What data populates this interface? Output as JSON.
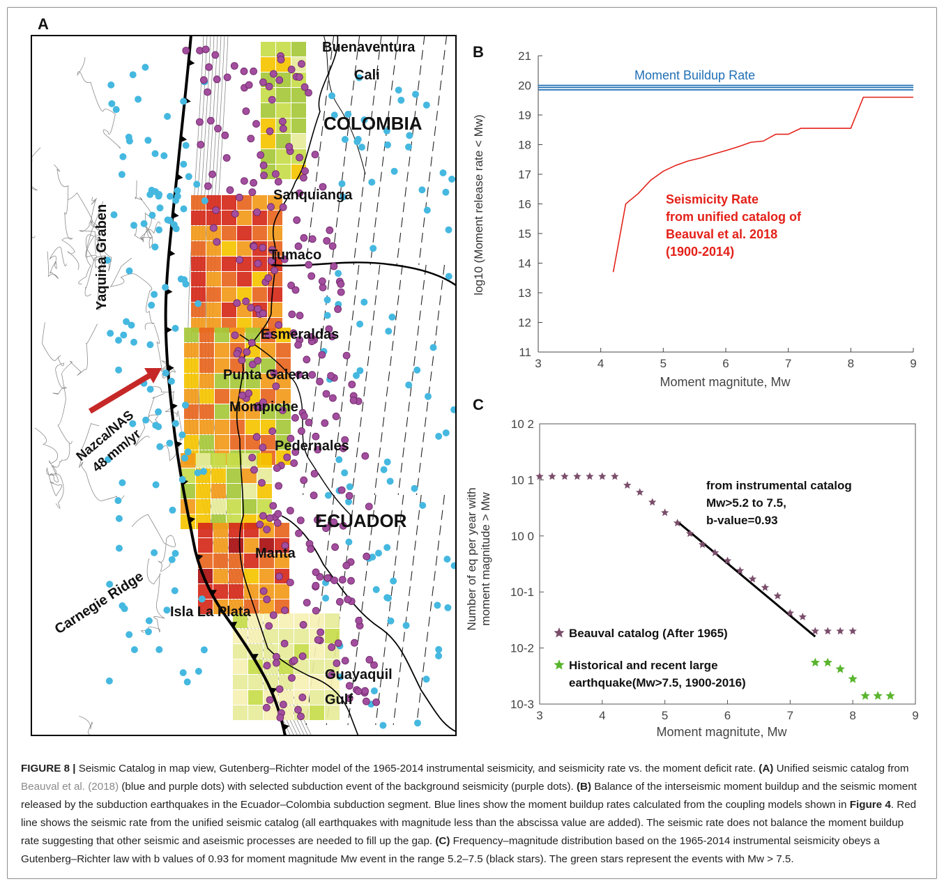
{
  "panels": {
    "a": "A",
    "b": "B",
    "c": "C"
  },
  "map": {
    "colors": {
      "land_border": "#000000",
      "trench": "#000000",
      "contour": "#8a8a8a",
      "blue_dots": "#45b8e0",
      "purple_dots": "#a24d9e",
      "arrow": "#c62828"
    },
    "patch_colors": [
      "#f6f0b4",
      "#e6eb9a",
      "#c8dc4a",
      "#a6c83a",
      "#f5c400",
      "#f29a1a",
      "#e8661e",
      "#d5291a",
      "#a90f10"
    ],
    "labels": {
      "buenaventura": "Buenaventura",
      "cali": "Cali",
      "colombia": "COLOMBIA",
      "sanquianga": "Sanquianga",
      "tumaco": "Tumaco",
      "esmeraldas": "Esmeraldas",
      "punta_galera": "Punta Galera",
      "mompiche": "Mompiche",
      "pedernales": "Pedernales",
      "ecuador": "ECUADOR",
      "manta": "Manta",
      "isla_la_plata": "Isla La Plata",
      "guayaquil": "Guayaquil",
      "gulf": "Gulf",
      "yaquina": "Yaquina Graben",
      "carnegie": "Carnegie Ridge",
      "nazca1": "Nazca/NAS",
      "nazca2": "48 mm/yr"
    }
  },
  "panel_b": {
    "title_label": "Moment Buildup Rate",
    "ylabel": "log10 (Moment release rate < Mw)",
    "xlabel": "Moment magnitute, Mw",
    "annotation": [
      "Seismicity Rate",
      "from unified catalog of",
      "Beauval et al. 2018",
      "(1900-2014)"
    ],
    "colors": {
      "buildup": "#1f6fb5",
      "seismicity": "#e32119",
      "annotation": "#e32119",
      "title_label": "#1f6fb5"
    }
  },
  "panel_c": {
    "ylabel_line1": "Number of eq per year with",
    "ylabel_line2": "moment magnitude > Mw",
    "xlabel": "Moment magnitute, Mw",
    "annotation": [
      "from instrumental catalog",
      "Mw>5.2 to 7.5,",
      "b-value=0.93"
    ],
    "legend": {
      "beauval": "Beauval catalog (After 1965)",
      "historical_1": "Historical and recent large",
      "historical_2": "earthquake(Mw>7.5, 1900-2016)"
    },
    "colors": {
      "beauval": "#7a4e6a",
      "historical": "#5ab52e",
      "fit": "#000000"
    }
  },
  "chart_data": [
    {
      "type": "line",
      "panel": "B",
      "xlim": [
        3,
        9
      ],
      "ylim": [
        11,
        21
      ],
      "xticks": [
        3,
        4,
        5,
        6,
        7,
        8,
        9
      ],
      "yticks": [
        11,
        12,
        13,
        14,
        15,
        16,
        17,
        18,
        19,
        20,
        21
      ],
      "xlabel": "Moment magnitute, Mw",
      "ylabel": "log10 (Moment release rate < Mw)",
      "grid": false,
      "series": [
        {
          "name": "Moment Buildup Rate",
          "kind": "horizontal_lines",
          "values": [
            19.85,
            19.93,
            20.0
          ]
        },
        {
          "name": "Seismicity Rate from unified catalog of Beauval et al. 2018 (1900-2014)",
          "x": [
            4.2,
            4.4,
            4.6,
            4.8,
            5.0,
            5.2,
            5.4,
            5.6,
            5.8,
            6.0,
            6.2,
            6.4,
            6.6,
            6.8,
            7.0,
            7.2,
            7.4,
            7.6,
            7.8,
            8.0,
            8.2,
            9.0
          ],
          "y": [
            13.7,
            16.0,
            16.35,
            16.8,
            17.1,
            17.3,
            17.45,
            17.55,
            17.68,
            17.8,
            17.93,
            18.08,
            18.12,
            18.35,
            18.35,
            18.55,
            18.55,
            18.55,
            18.55,
            18.55,
            19.6,
            19.6
          ]
        }
      ]
    },
    {
      "type": "scatter",
      "panel": "C",
      "yscale": "log",
      "xlim": [
        3,
        9
      ],
      "ylim": [
        0.001,
        100
      ],
      "xticks": [
        3,
        4,
        5,
        6,
        7,
        8,
        9
      ],
      "ytick_labels": [
        "10 2",
        "10 1",
        "10 0",
        "10-1",
        "10-2",
        "10-3"
      ],
      "ytick_values": [
        100,
        10,
        1,
        0.1,
        0.01,
        0.001
      ],
      "xlabel": "Moment magnitute, Mw",
      "ylabel": "Number of eq per year with moment magnitude > Mw",
      "series": [
        {
          "name": "Beauval catalog (After 1965)",
          "x": [
            3.0,
            3.2,
            3.4,
            3.6,
            3.8,
            4.0,
            4.2,
            4.4,
            4.6,
            4.8,
            5.0,
            5.2,
            5.4,
            5.6,
            5.8,
            6.0,
            6.2,
            6.4,
            6.6,
            6.8,
            7.0,
            7.2,
            7.4,
            7.6,
            7.8,
            8.0
          ],
          "y": [
            11.5,
            11.5,
            11.5,
            11.5,
            11.5,
            11.5,
            11.5,
            8.0,
            6.0,
            4.0,
            2.6,
            1.7,
            1.1,
            0.7,
            0.5,
            0.36,
            0.24,
            0.17,
            0.12,
            0.085,
            0.042,
            0.036,
            0.02,
            0.02,
            0.02,
            0.02
          ]
        },
        {
          "name": "Historical and recent large earthquake(Mw>7.5, 1900-2016)",
          "x": [
            7.4,
            7.6,
            7.8,
            8.0,
            8.2,
            8.4,
            8.6
          ],
          "y": [
            0.0055,
            0.0055,
            0.0042,
            0.0028,
            0.0014,
            0.0014,
            0.0014
          ]
        },
        {
          "name": "fit",
          "kind": "line",
          "x": [
            5.2,
            7.4
          ],
          "y": [
            1.8,
            0.016
          ]
        }
      ]
    }
  ],
  "caption": {
    "fig_label": "FIGURE 8 |",
    "t1": " Seismic Catalog in map view, Gutenberg–Richter model of the 1965-2014 instrumental seismicity, and seismicity rate vs. the moment deficit rate. ",
    "a_label": "(A)",
    "t2": " Unified seismic catalog from ",
    "ref": "Beauval et al. (2018)",
    "t3": " (blue and purple dots) with selected subduction event of the background seismicity (purple dots). ",
    "b_label": "(B)",
    "t4": " Balance of the interseismic moment buildup and the seismic moment released by the subduction earthquakes in the Ecuador–Colombia subduction segment. Blue lines show the moment buildup rates calculated from the coupling models shown in ",
    "fig4": "Figure 4",
    "t5": ". Red line shows the seismic rate from the unified seismic catalog (all earthquakes with magnitude less than the abscissa value are added). The seismic rate does not balance the moment buildup rate suggesting that other seismic and aseismic processes are needed to fill up the gap. ",
    "c_label": "(C)",
    "t6": " Frequency–magnitude distribution based on the 1965-2014 instrumental seismicity obeys a Gutenberg–Richter law with b values of 0.93 for moment magnitude Mw event in the range 5.2–7.5 (black stars). The green stars represent the events with Mw > 7.5."
  }
}
